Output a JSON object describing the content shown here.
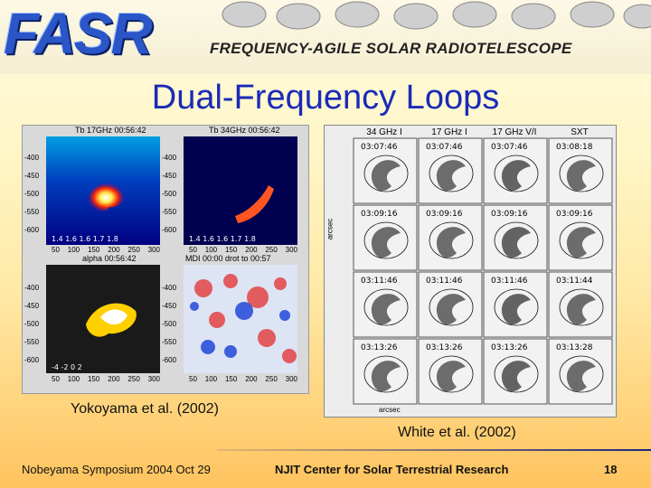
{
  "banner": {
    "logo": "FASR",
    "subtitle": "FREQUENCY-AGILE SOLAR RADIOTELESCOPE"
  },
  "slide": {
    "title": "Dual-Frequency Loops"
  },
  "left_figure": {
    "panels": [
      {
        "title": "Tb 17GHz 00:56:42"
      },
      {
        "title": "Tb 34GHz 00:56:42"
      },
      {
        "title": "alpha 00:56:42"
      },
      {
        "title": "MDI 00:00 drot to 00:57"
      }
    ],
    "y_ticks": [
      "-400",
      "-450",
      "-500",
      "-550",
      "-600"
    ],
    "x_ticks": [
      "50",
      "100",
      "150",
      "200",
      "250",
      "300"
    ],
    "citation": "Yokoyama et al. (2002)"
  },
  "right_figure": {
    "columns": [
      "34 GHz I",
      "17 GHz I",
      "17 GHz V/I",
      "SXT"
    ],
    "rows": [
      [
        "03:07:46",
        "03:07:46",
        "03:07:46",
        "03:08:18"
      ],
      [
        "03:09:16",
        "03:09:16",
        "03:09:16",
        "03:09:16"
      ],
      [
        "03:11:46",
        "03:11:46",
        "03:11:46",
        "03:11:44"
      ],
      [
        "03:13:26",
        "03:13:26",
        "03:13:26",
        "03:13:28"
      ]
    ],
    "axis_label": "arcsec",
    "citation": "White et al. (2002)"
  },
  "footer": {
    "left": "Nobeyama Symposium  2004 Oct 29",
    "center": "NJIT Center for Solar Terrestrial Research",
    "page": "18"
  }
}
